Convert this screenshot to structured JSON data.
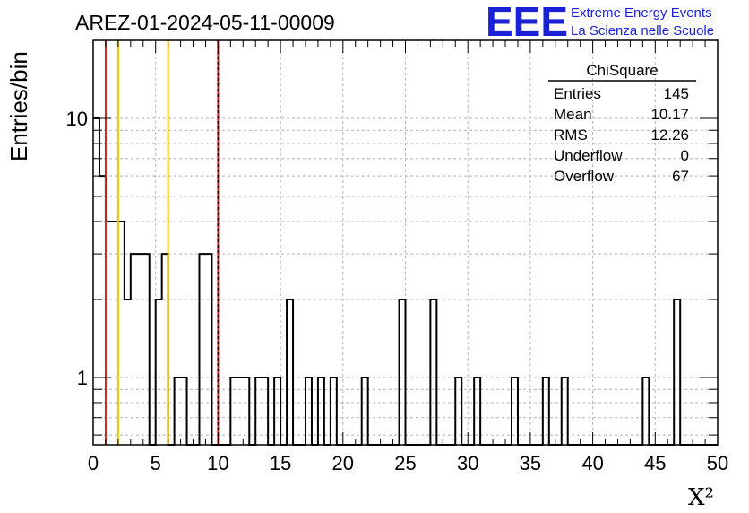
{
  "chart_data": {
    "type": "bar",
    "title": "AREZ-01-2024-05-11-00009",
    "xlabel": "X²",
    "ylabel": "Entries/bin",
    "xlim": [
      0,
      50
    ],
    "ylim": [
      0.55,
      20
    ],
    "yscale": "log",
    "bin_width": 0.5,
    "grid": true,
    "x_ticks": [
      "0",
      "5",
      "10",
      "15",
      "20",
      "25",
      "30",
      "35",
      "40",
      "45",
      "50"
    ],
    "y_ticks": [
      "1",
      "10"
    ],
    "bins": [
      {
        "x": 0.0,
        "value": 10
      },
      {
        "x": 0.5,
        "value": 6
      },
      {
        "x": 1.0,
        "value": 4
      },
      {
        "x": 1.5,
        "value": 4
      },
      {
        "x": 2.0,
        "value": 4
      },
      {
        "x": 2.5,
        "value": 2
      },
      {
        "x": 3.0,
        "value": 3
      },
      {
        "x": 3.5,
        "value": 3
      },
      {
        "x": 4.0,
        "value": 3
      },
      {
        "x": 5.0,
        "value": 2
      },
      {
        "x": 5.5,
        "value": 3
      },
      {
        "x": 6.5,
        "value": 1
      },
      {
        "x": 7.0,
        "value": 1
      },
      {
        "x": 8.5,
        "value": 3
      },
      {
        "x": 9.0,
        "value": 3
      },
      {
        "x": 11.0,
        "value": 1
      },
      {
        "x": 11.5,
        "value": 1
      },
      {
        "x": 12.0,
        "value": 1
      },
      {
        "x": 13.0,
        "value": 1
      },
      {
        "x": 13.5,
        "value": 1
      },
      {
        "x": 14.5,
        "value": 1
      },
      {
        "x": 15.5,
        "value": 2
      },
      {
        "x": 17.0,
        "value": 1
      },
      {
        "x": 18.0,
        "value": 1
      },
      {
        "x": 19.0,
        "value": 1
      },
      {
        "x": 21.5,
        "value": 1
      },
      {
        "x": 24.5,
        "value": 2
      },
      {
        "x": 27.0,
        "value": 2
      },
      {
        "x": 29.0,
        "value": 1
      },
      {
        "x": 30.5,
        "value": 1
      },
      {
        "x": 33.5,
        "value": 1
      },
      {
        "x": 36.0,
        "value": 1
      },
      {
        "x": 37.5,
        "value": 1
      },
      {
        "x": 44.0,
        "value": 1
      },
      {
        "x": 46.5,
        "value": 2
      }
    ],
    "reference_lines": [
      {
        "x": 1,
        "color": "#d42020"
      },
      {
        "x": 2,
        "color": "#f5c400"
      },
      {
        "x": 6,
        "color": "#f5c400"
      },
      {
        "x": 10,
        "color": "#d42020"
      },
      {
        "x": 10,
        "color": "#000000",
        "dashed": true
      }
    ]
  },
  "stats_box": {
    "title": "ChiSquare",
    "rows": [
      {
        "label": "Entries",
        "value": "145"
      },
      {
        "label": "Mean",
        "value": "10.17"
      },
      {
        "label": "RMS",
        "value": "12.26"
      },
      {
        "label": "Underflow",
        "value": "0"
      },
      {
        "label": "Overflow",
        "value": "67"
      }
    ]
  },
  "logo": {
    "mark": "EEE",
    "line1": "Extreme Energy Events",
    "line2": "La Scienza nelle Scuole",
    "color": "#1a22d8"
  }
}
